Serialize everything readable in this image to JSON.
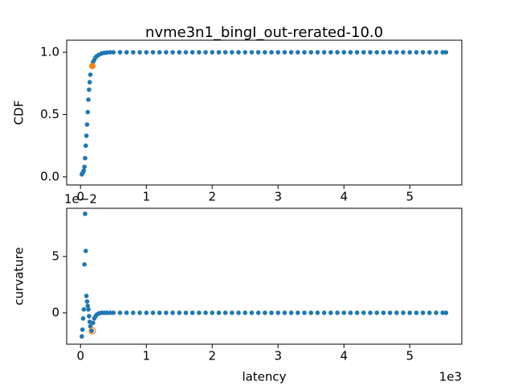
{
  "chart_data": [
    {
      "type": "scatter",
      "title": "nvme3n1_bingI_out-rerated-10.0",
      "y_label": "CDF",
      "xlim": [
        -0.21,
        5.79
      ],
      "xticks": [
        0,
        1,
        2,
        3,
        4,
        5
      ],
      "ylim": [
        -0.065,
        1.097
      ],
      "yticks": [
        {
          "value": 0,
          "label": "0.0"
        },
        {
          "value": 0.5,
          "label": "0.5"
        },
        {
          "value": 1,
          "label": "1.0"
        }
      ],
      "series": [
        {
          "color": "#1f77b4",
          "filled": true,
          "x": [
            0.02,
            0.03,
            0.04,
            0.05,
            0.06,
            0.07,
            0.08,
            0.09,
            0.1,
            0.11,
            0.12,
            0.13,
            0.14,
            0.15,
            0.17,
            0.19,
            0.21,
            0.23,
            0.25,
            0.28,
            0.32,
            0.36,
            0.4,
            0.45,
            0.5,
            0.6,
            0.7,
            0.8,
            0.9,
            1.0,
            1.1,
            1.2,
            1.3,
            1.4,
            1.5,
            1.6,
            1.7,
            1.8,
            1.9,
            2.0,
            2.1,
            2.2,
            2.3,
            2.4,
            2.5,
            2.6,
            2.7,
            2.8,
            2.9,
            3.0,
            3.1,
            3.2,
            3.3,
            3.4,
            3.5,
            3.6,
            3.7,
            3.8,
            3.9,
            4.0,
            4.1,
            4.2,
            4.3,
            4.4,
            4.5,
            4.6,
            4.7,
            4.8,
            4.9,
            5.0,
            5.1,
            5.2,
            5.3,
            5.4,
            5.5,
            5.55
          ],
          "values": [
            0.02,
            0.03,
            0.04,
            0.05,
            0.08,
            0.15,
            0.25,
            0.33,
            0.42,
            0.52,
            0.62,
            0.7,
            0.76,
            0.82,
            0.89,
            0.92,
            0.94,
            0.96,
            0.97,
            0.98,
            0.99,
            0.995,
            0.998,
            1,
            1,
            1,
            1,
            1,
            1,
            1,
            1,
            1,
            1,
            1,
            1,
            1,
            1,
            1,
            1,
            1,
            1,
            1,
            1,
            1,
            1,
            1,
            1,
            1,
            1,
            1,
            1,
            1,
            1,
            1,
            1,
            1,
            1,
            1,
            1,
            1,
            1,
            1,
            1,
            1,
            1,
            1,
            1,
            1,
            1,
            1,
            1,
            1,
            1,
            1,
            1,
            1
          ]
        },
        {
          "color": "#ff7f0e",
          "filled": true,
          "x": [
            0.18
          ],
          "values": [
            0.89
          ]
        }
      ]
    },
    {
      "type": "scatter",
      "y_label": "curvature",
      "x_label": "latency",
      "x_offset": "1e3",
      "y_offset": "1e−2",
      "xlim": [
        -0.21,
        5.79
      ],
      "xticks": [
        0,
        1,
        2,
        3,
        4,
        5
      ],
      "ylim": [
        -2.79,
        9.29
      ],
      "yticks": [
        0,
        5
      ],
      "series": [
        {
          "color": "#1f77b4",
          "filled": true,
          "x": [
            0.02,
            0.03,
            0.04,
            0.05,
            0.06,
            0.07,
            0.08,
            0.09,
            0.1,
            0.11,
            0.12,
            0.13,
            0.14,
            0.15,
            0.17,
            0.19,
            0.21,
            0.23,
            0.25,
            0.28,
            0.32,
            0.36,
            0.4,
            0.45,
            0.5,
            0.6,
            0.7,
            0.8,
            0.9,
            1.0,
            1.1,
            1.2,
            1.3,
            1.4,
            1.5,
            1.6,
            1.7,
            1.8,
            1.9,
            2.0,
            2.1,
            2.2,
            2.3,
            2.4,
            2.5,
            2.6,
            2.7,
            2.8,
            2.9,
            3.0,
            3.1,
            3.2,
            3.3,
            3.4,
            3.5,
            3.6,
            3.7,
            3.8,
            3.9,
            4.0,
            4.1,
            4.2,
            4.3,
            4.4,
            4.5,
            4.6,
            4.7,
            4.8,
            4.9,
            5.0,
            5.1,
            5.2,
            5.3,
            5.4,
            5.5,
            5.55
          ],
          "values": [
            -2.1,
            -1.5,
            -0.5,
            0.3,
            4.3,
            8.8,
            5.5,
            1.5,
            1.0,
            0.6,
            0.3,
            -0.3,
            -0.8,
            -1.2,
            -1.6,
            -0.9,
            -0.5,
            -0.3,
            -0.15,
            -0.05,
            0,
            0,
            0,
            0,
            0,
            0,
            0,
            0,
            0,
            0,
            0,
            0,
            0,
            0,
            0,
            0,
            0,
            0,
            0,
            0,
            0,
            0,
            0,
            0,
            0,
            0,
            0,
            0,
            0,
            0,
            0,
            0,
            0,
            0,
            0,
            0,
            0,
            0,
            0,
            0,
            0,
            0,
            0,
            0,
            0,
            0,
            0,
            0,
            0,
            0,
            0,
            0,
            0,
            0,
            0,
            0
          ]
        },
        {
          "color": "#ff7f0e",
          "filled": false,
          "x": [
            0.18
          ],
          "values": [
            -1.6
          ]
        }
      ]
    }
  ]
}
